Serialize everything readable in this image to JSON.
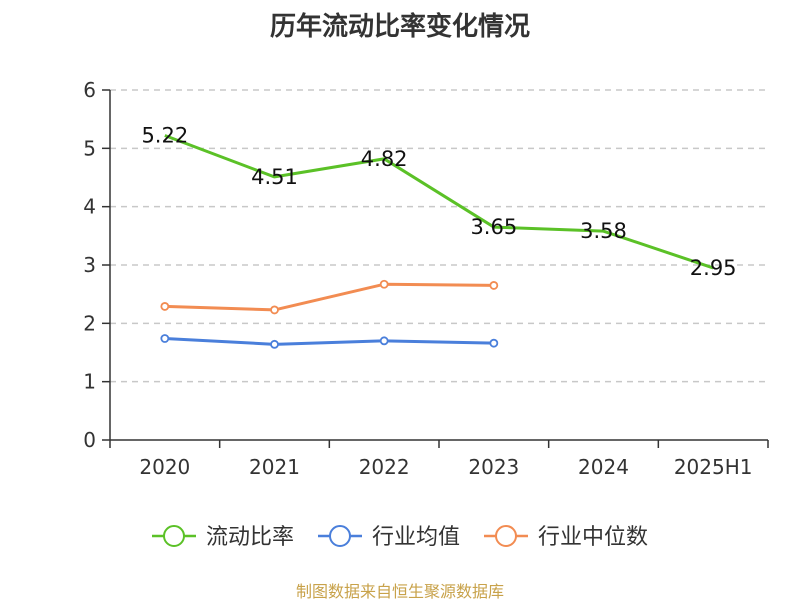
{
  "chart_data": {
    "type": "line",
    "title": "历年流动比率变化情况",
    "categories": [
      "2020",
      "2021",
      "2022",
      "2023",
      "2024",
      "2025H1"
    ],
    "ylim": [
      0,
      6
    ],
    "yticks": [
      0,
      1,
      2,
      3,
      4,
      5,
      6
    ],
    "grid": true,
    "legend_position": "bottom",
    "series": [
      {
        "name": "流动比率",
        "color": "#5bc127",
        "values": [
          5.22,
          4.51,
          4.82,
          3.65,
          3.58,
          2.95
        ],
        "labels": true,
        "markers": false
      },
      {
        "name": "行业均值",
        "color": "#4a7fdb",
        "values": [
          1.74,
          1.64,
          1.7,
          1.66,
          null,
          null
        ],
        "labels": false,
        "markers": true
      },
      {
        "name": "行业中位数",
        "color": "#f28c52",
        "values": [
          2.29,
          2.23,
          2.67,
          2.65,
          null,
          null
        ],
        "labels": false,
        "markers": true
      }
    ]
  },
  "footer": {
    "source": "制图数据来自恒生聚源数据库"
  }
}
